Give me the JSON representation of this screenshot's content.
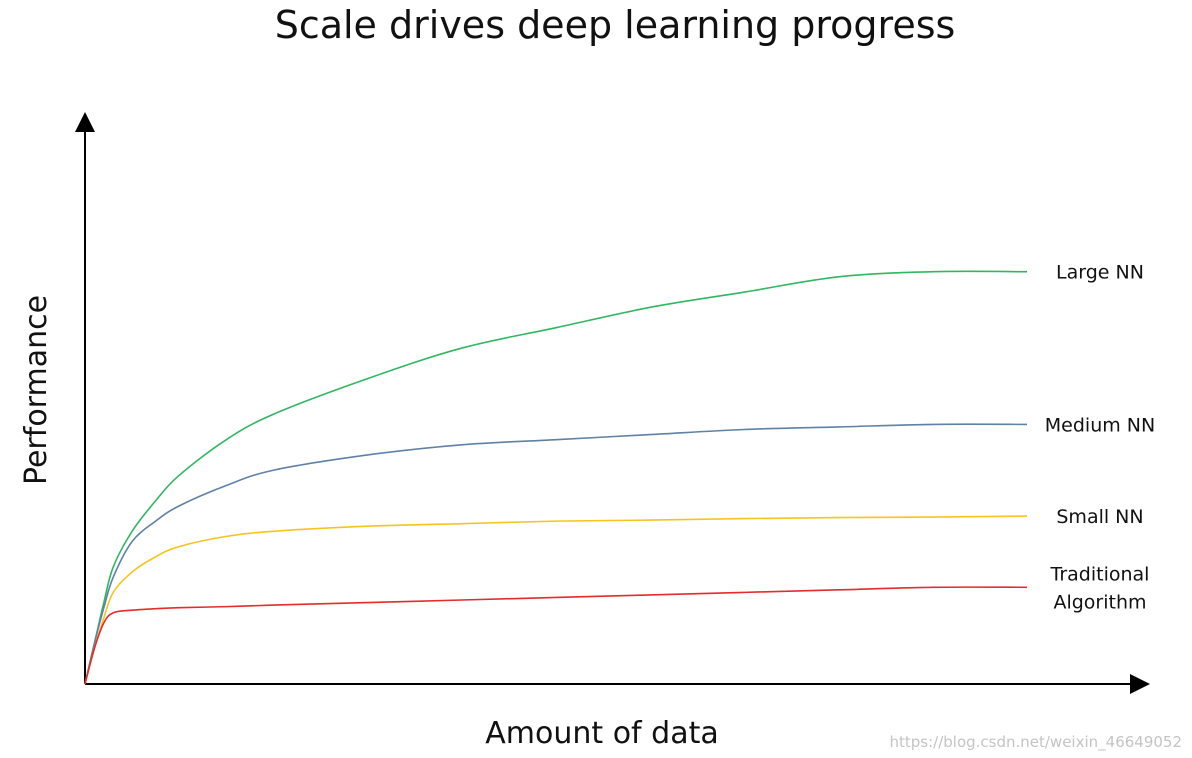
{
  "chart_data": {
    "type": "line",
    "title": "Scale drives deep learning progress",
    "xlabel": "Amount of data",
    "ylabel": "Performance",
    "grid": false,
    "legend": "inline labels at line ends",
    "xlim": [
      0,
      1
    ],
    "ylim": [
      0,
      1
    ],
    "x": [
      0,
      0.01,
      0.02,
      0.03,
      0.05,
      0.075,
      0.1,
      0.15,
      0.2,
      0.3,
      0.4,
      0.5,
      0.6,
      0.7,
      0.8,
      0.9,
      1.0
    ],
    "series": [
      {
        "name": "Large NN",
        "color": "#2eb860",
        "values": [
          0,
          0.08,
          0.16,
          0.23,
          0.3,
          0.36,
          0.41,
          0.48,
          0.53,
          0.6,
          0.66,
          0.7,
          0.74,
          0.77,
          0.8,
          0.81,
          0.81
        ]
      },
      {
        "name": "Medium NN",
        "color": "#5f81a6",
        "values": [
          0,
          0.08,
          0.15,
          0.21,
          0.28,
          0.32,
          0.35,
          0.39,
          0.42,
          0.45,
          0.47,
          0.48,
          0.49,
          0.5,
          0.505,
          0.51,
          0.51
        ]
      },
      {
        "name": "Small NN",
        "color": "#f7c41f",
        "values": [
          0,
          0.07,
          0.13,
          0.18,
          0.22,
          0.25,
          0.27,
          0.29,
          0.3,
          0.31,
          0.315,
          0.32,
          0.322,
          0.325,
          0.327,
          0.328,
          0.33
        ]
      },
      {
        "name": "Traditional Algorithm",
        "label_lines": [
          "Traditional",
          "Algorithm"
        ],
        "color": "#e52b2b",
        "values": [
          0,
          0.07,
          0.12,
          0.14,
          0.145,
          0.148,
          0.15,
          0.152,
          0.155,
          0.16,
          0.165,
          0.17,
          0.175,
          0.18,
          0.185,
          0.19,
          0.19
        ]
      }
    ]
  },
  "watermark": "https://blog.csdn.net/weixin_46649052"
}
